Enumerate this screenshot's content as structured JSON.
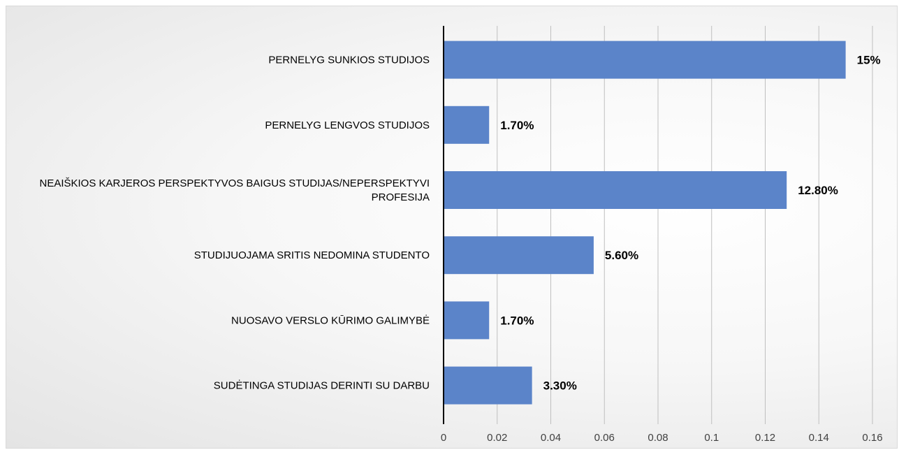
{
  "chart_data": {
    "type": "bar",
    "orientation": "horizontal",
    "title": "",
    "xlabel": "",
    "ylabel": "",
    "categories": [
      [
        "PERNELYG SUNKIOS STUDIJOS"
      ],
      [
        "PERNELYG LENGVOS STUDIJOS"
      ],
      [
        "NEAIŠKIOS KARJEROS PERSPEKTYVOS BAIGUS STUDIJAS/NEPERSPEKTYVI",
        "PROFESIJA"
      ],
      [
        "STUDIJUOJAMA SRITIS NEDOMINA STUDENTO"
      ],
      [
        "NUOSAVO VERSLO KŪRIMO GALIMYBĖ"
      ],
      [
        "SUDĖTINGA STUDIJAS DERINTI SU DARBU"
      ]
    ],
    "values": [
      0.15,
      0.017,
      0.128,
      0.056,
      0.017,
      0.033
    ],
    "data_labels": [
      "15%",
      "1.70%",
      "12.80%",
      "5.60%",
      "1.70%",
      "3.30%"
    ],
    "xlim": [
      0,
      0.16
    ],
    "x_ticks": [
      "0",
      "0.02",
      "0.04",
      "0.06",
      "0.08",
      "0.1",
      "0.12",
      "0.14",
      "0.16"
    ],
    "grid": "vertical",
    "legend": "none",
    "bar_color": "#5b84c9",
    "grid_color": "#bfbfbf",
    "axis_color": "#000000"
  }
}
